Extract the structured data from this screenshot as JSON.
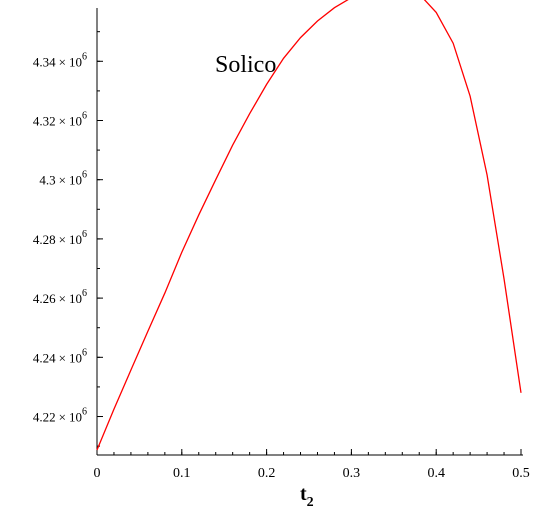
{
  "chart_data": {
    "type": "line",
    "title": "",
    "xlabel": "t",
    "xlabel_subscript": "2",
    "ylabel": "",
    "annotation": "Solico",
    "xlim": [
      0,
      0.5
    ],
    "ylim": [
      4.207,
      4.358
    ],
    "x_ticks": [
      {
        "value": 0,
        "label": "0"
      },
      {
        "value": 0.1,
        "label": "0.1"
      },
      {
        "value": 0.2,
        "label": "0.2"
      },
      {
        "value": 0.3,
        "label": "0.3"
      },
      {
        "value": 0.4,
        "label": "0.4"
      },
      {
        "value": 0.5,
        "label": "0.5"
      }
    ],
    "y_ticks": [
      {
        "value": 4.22,
        "mantissa": "4.22",
        "times": "×",
        "base": "10",
        "exponent": "6"
      },
      {
        "value": 4.24,
        "mantissa": "4.24",
        "times": "×",
        "base": "10",
        "exponent": "6"
      },
      {
        "value": 4.26,
        "mantissa": "4.26",
        "times": "×",
        "base": "10",
        "exponent": "6"
      },
      {
        "value": 4.28,
        "mantissa": "4.28",
        "times": "×",
        "base": "10",
        "exponent": "6"
      },
      {
        "value": 4.3,
        "mantissa": "4.3",
        "times": "×",
        "base": "10",
        "exponent": "6"
      },
      {
        "value": 4.32,
        "mantissa": "4.32",
        "times": "×",
        "base": "10",
        "exponent": "6"
      },
      {
        "value": 4.34,
        "mantissa": "4.34",
        "times": "×",
        "base": "10",
        "exponent": "6"
      }
    ],
    "grid": false,
    "line_color": "#ff0000",
    "series": [
      {
        "x": [
          0,
          0.02,
          0.04,
          0.06,
          0.08,
          0.1,
          0.12,
          0.14,
          0.16,
          0.18,
          0.2,
          0.22,
          0.24,
          0.26,
          0.28,
          0.3,
          0.32,
          0.34,
          0.36,
          0.38,
          0.4,
          0.42,
          0.44,
          0.46,
          0.48,
          0.5
        ],
        "y": [
          4.2087,
          4.2225,
          4.2357,
          4.2488,
          4.2617,
          4.2755,
          4.2881,
          4.3,
          4.3117,
          4.3223,
          4.3322,
          4.341,
          4.348,
          4.3536,
          4.3581,
          4.3615,
          4.3639,
          4.3648,
          4.3648,
          4.3627,
          4.3565,
          4.3461,
          4.3282,
          4.3016,
          4.2665,
          4.228
        ]
      }
    ]
  }
}
